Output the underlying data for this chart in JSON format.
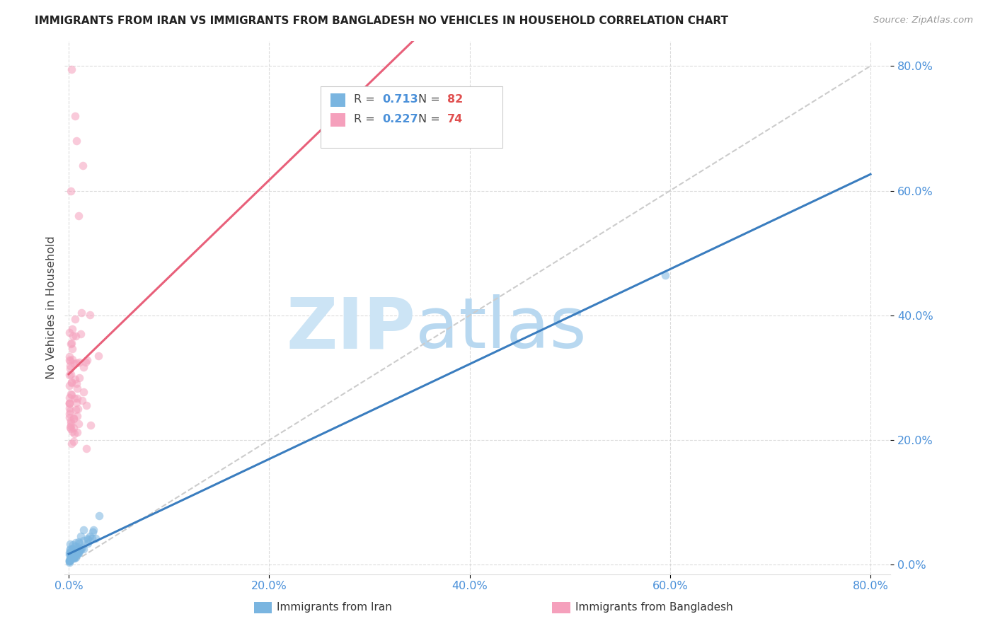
{
  "title": "IMMIGRANTS FROM IRAN VS IMMIGRANTS FROM BANGLADESH NO VEHICLES IN HOUSEHOLD CORRELATION CHART",
  "source": "Source: ZipAtlas.com",
  "ylabel": "No Vehicles in Household",
  "iran_color": "#7ab5e0",
  "bangladesh_color": "#f5a0bc",
  "iran_line_color": "#3a7dbf",
  "bangladesh_line_color": "#e8607a",
  "diagonal_color": "#cccccc",
  "iran_R": "0.713",
  "iran_N": "82",
  "bangladesh_R": "0.227",
  "bangladesh_N": "74",
  "iran_label": "Immigrants from Iran",
  "bangladesh_label": "Immigrants from Bangladesh",
  "tick_color": "#4a90d9",
  "ylabel_color": "#444444",
  "title_color": "#222222",
  "source_color": "#999999",
  "grid_color": "#cccccc",
  "background_color": "#ffffff",
  "legend_border_color": "#cccccc",
  "watermark_zip_color": "#cce4f5",
  "watermark_atlas_color": "#b8d8f0"
}
